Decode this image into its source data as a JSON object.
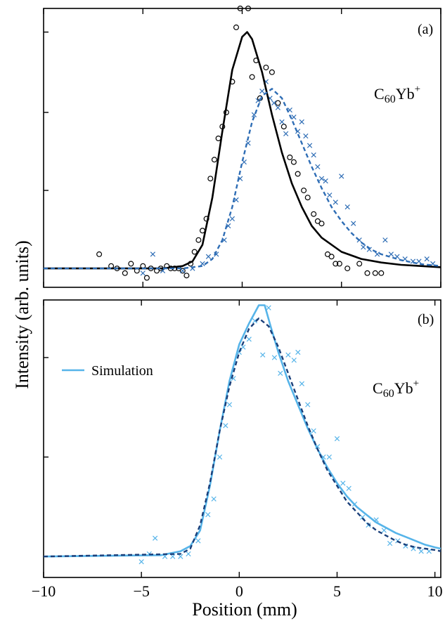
{
  "figure": {
    "xlabel": "Position (mm)",
    "ylabel": "Intensity (arb. units)"
  },
  "colors": {
    "black": "#000000",
    "dark_blue": "#2e6db5",
    "light_blue": "#56b4e9"
  },
  "chart_data": [
    {
      "type": "scatter",
      "panel": "(a)",
      "annotation": {
        "base": "C",
        "sub": "60",
        "mid": "Yb",
        "sup": "+"
      },
      "xlim": [
        -10,
        10
      ],
      "ylim": [
        -0.08,
        1.1
      ],
      "xticks": [
        -10,
        -5,
        0,
        5,
        10
      ],
      "yticks": [
        0,
        0.33,
        0.66,
        1.0
      ],
      "series": [
        {
          "style": "circle-markers",
          "color": "#000000",
          "points": [
            [
              -7.2,
              0.06
            ],
            [
              -6.6,
              0.01
            ],
            [
              -6.3,
              0.0
            ],
            [
              -5.9,
              -0.02
            ],
            [
              -5.6,
              0.02
            ],
            [
              -5.3,
              -0.01
            ],
            [
              -5.0,
              0.01
            ],
            [
              -4.8,
              -0.04
            ],
            [
              -4.6,
              0.0
            ],
            [
              -4.3,
              -0.01
            ],
            [
              -4.1,
              0.0
            ],
            [
              -3.8,
              0.01
            ],
            [
              -3.6,
              0.0
            ],
            [
              -3.4,
              0.0
            ],
            [
              -3.2,
              0.0
            ],
            [
              -3.0,
              -0.01
            ],
            [
              -2.8,
              -0.03
            ],
            [
              -2.6,
              0.02
            ],
            [
              -2.4,
              0.07
            ],
            [
              -2.2,
              0.12
            ],
            [
              -2.0,
              0.16
            ],
            [
              -1.8,
              0.21
            ],
            [
              -1.6,
              0.38
            ],
            [
              -1.4,
              0.46
            ],
            [
              -1.2,
              0.55
            ],
            [
              -1.0,
              0.6
            ],
            [
              -0.8,
              0.66
            ],
            [
              -0.5,
              0.79
            ],
            [
              -0.3,
              1.02
            ],
            [
              -0.1,
              1.1
            ],
            [
              0.3,
              1.1
            ],
            [
              0.5,
              0.81
            ],
            [
              0.7,
              0.88
            ],
            [
              0.9,
              0.72
            ],
            [
              1.2,
              0.85
            ],
            [
              1.5,
              0.83
            ],
            [
              1.8,
              0.7
            ],
            [
              2.1,
              0.6
            ],
            [
              2.4,
              0.47
            ],
            [
              2.6,
              0.45
            ],
            [
              2.8,
              0.4
            ],
            [
              3.1,
              0.33
            ],
            [
              3.3,
              0.3
            ],
            [
              3.6,
              0.23
            ],
            [
              3.8,
              0.2
            ],
            [
              4.0,
              0.19
            ],
            [
              4.3,
              0.06
            ],
            [
              4.5,
              0.05
            ],
            [
              4.7,
              0.02
            ],
            [
              4.9,
              0.02
            ],
            [
              5.3,
              0.0
            ],
            [
              5.9,
              0.02
            ],
            [
              6.3,
              -0.02
            ],
            [
              6.7,
              -0.02
            ],
            [
              7.0,
              -0.02
            ]
          ]
        },
        {
          "style": "x-markers",
          "color": "#2e6db5",
          "points": [
            [
              -4.5,
              0.06
            ],
            [
              -5.0,
              -0.02
            ],
            [
              -4.0,
              -0.01
            ],
            [
              -3.0,
              -0.01
            ],
            [
              -2.5,
              0.0
            ],
            [
              -2.0,
              0.02
            ],
            [
              -1.7,
              0.05
            ],
            [
              -1.3,
              0.06
            ],
            [
              -0.9,
              0.12
            ],
            [
              -0.7,
              0.18
            ],
            [
              -0.5,
              0.21
            ],
            [
              -0.3,
              0.29
            ],
            [
              -0.1,
              0.38
            ],
            [
              0.1,
              0.45
            ],
            [
              0.3,
              0.53
            ],
            [
              0.6,
              0.65
            ],
            [
              0.8,
              0.71
            ],
            [
              1.0,
              0.75
            ],
            [
              1.2,
              0.79
            ],
            [
              1.4,
              0.72
            ],
            [
              1.6,
              0.7
            ],
            [
              1.8,
              0.68
            ],
            [
              2.0,
              0.62
            ],
            [
              2.2,
              0.57
            ],
            [
              2.4,
              0.67
            ],
            [
              2.6,
              0.64
            ],
            [
              2.8,
              0.58
            ],
            [
              3.0,
              0.62
            ],
            [
              3.2,
              0.56
            ],
            [
              3.4,
              0.52
            ],
            [
              3.6,
              0.48
            ],
            [
              3.8,
              0.43
            ],
            [
              4.0,
              0.38
            ],
            [
              4.2,
              0.37
            ],
            [
              4.4,
              0.31
            ],
            [
              4.7,
              0.28
            ],
            [
              5.0,
              0.39
            ],
            [
              5.3,
              0.26
            ],
            [
              5.6,
              0.19
            ],
            [
              5.9,
              0.12
            ],
            [
              6.1,
              0.09
            ],
            [
              6.4,
              0.08
            ],
            [
              6.8,
              0.06
            ],
            [
              7.2,
              0.12
            ],
            [
              7.5,
              0.06
            ],
            [
              7.8,
              0.05
            ],
            [
              8.2,
              0.04
            ],
            [
              8.6,
              0.03
            ],
            [
              8.9,
              0.03
            ],
            [
              9.3,
              0.04
            ],
            [
              9.6,
              0.02
            ]
          ]
        },
        {
          "style": "solid-line",
          "color": "#000000",
          "points": [
            [
              -10,
              0.0
            ],
            [
              -4,
              0.0
            ],
            [
              -3,
              0.01
            ],
            [
              -2.5,
              0.03
            ],
            [
              -2,
              0.1
            ],
            [
              -1.5,
              0.3
            ],
            [
              -1,
              0.58
            ],
            [
              -0.5,
              0.84
            ],
            [
              0,
              0.98
            ],
            [
              0.25,
              1.0
            ],
            [
              0.5,
              0.97
            ],
            [
              1,
              0.83
            ],
            [
              1.5,
              0.65
            ],
            [
              2,
              0.49
            ],
            [
              2.5,
              0.36
            ],
            [
              3,
              0.26
            ],
            [
              3.5,
              0.18
            ],
            [
              4,
              0.13
            ],
            [
              5,
              0.07
            ],
            [
              6,
              0.04
            ],
            [
              7,
              0.025
            ],
            [
              8,
              0.015
            ],
            [
              9,
              0.01
            ],
            [
              10,
              0.005
            ]
          ]
        },
        {
          "style": "dashed-line",
          "color": "#2e6db5",
          "points": [
            [
              -10,
              0.0
            ],
            [
              -3,
              0.0
            ],
            [
              -2,
              0.01
            ],
            [
              -1.5,
              0.04
            ],
            [
              -1,
              0.12
            ],
            [
              -0.5,
              0.26
            ],
            [
              0,
              0.45
            ],
            [
              0.5,
              0.62
            ],
            [
              1,
              0.73
            ],
            [
              1.5,
              0.76
            ],
            [
              2,
              0.72
            ],
            [
              2.5,
              0.63
            ],
            [
              3,
              0.53
            ],
            [
              3.5,
              0.43
            ],
            [
              4,
              0.34
            ],
            [
              4.5,
              0.26
            ],
            [
              5,
              0.2
            ],
            [
              5.5,
              0.15
            ],
            [
              6,
              0.11
            ],
            [
              6.5,
              0.08
            ],
            [
              7,
              0.06
            ],
            [
              8,
              0.035
            ],
            [
              9,
              0.018
            ],
            [
              10,
              0.01
            ]
          ]
        }
      ]
    },
    {
      "type": "scatter",
      "panel": "(b)",
      "annotation": {
        "base": "C",
        "sub": "60",
        "mid": "Yb",
        "sup": "+"
      },
      "legend": [
        {
          "label": "Simulation",
          "color": "#56b4e9",
          "style": "solid-line"
        }
      ],
      "legend_position": "top-left",
      "xlim": [
        -10,
        10.3
      ],
      "ylim": [
        -0.08,
        0.98
      ],
      "xticks": [
        -10,
        -5,
        0,
        5,
        10
      ],
      "yticks": [
        0,
        0.38,
        0.76
      ],
      "series": [
        {
          "style": "x-markers",
          "color": "#56b4e9",
          "points": [
            [
              -5.0,
              -0.02
            ],
            [
              -4.6,
              0.01
            ],
            [
              -4.3,
              0.07
            ],
            [
              -3.8,
              0.0
            ],
            [
              -3.4,
              0.0
            ],
            [
              -3.0,
              0.0
            ],
            [
              -2.6,
              0.01
            ],
            [
              -2.1,
              0.06
            ],
            [
              -1.6,
              0.16
            ],
            [
              -1.3,
              0.22
            ],
            [
              -1.0,
              0.38
            ],
            [
              -0.7,
              0.5
            ],
            [
              -0.5,
              0.58
            ],
            [
              -0.3,
              0.68
            ],
            [
              0.0,
              0.78
            ],
            [
              0.2,
              0.8
            ],
            [
              0.5,
              0.83
            ],
            [
              0.8,
              0.9
            ],
            [
              1.2,
              0.77
            ],
            [
              1.5,
              0.95
            ],
            [
              1.8,
              0.76
            ],
            [
              2.1,
              0.7
            ],
            [
              2.5,
              0.77
            ],
            [
              2.8,
              0.75
            ],
            [
              3.0,
              0.78
            ],
            [
              3.2,
              0.66
            ],
            [
              3.5,
              0.58
            ],
            [
              3.8,
              0.48
            ],
            [
              4.0,
              0.42
            ],
            [
              4.3,
              0.38
            ],
            [
              4.6,
              0.38
            ],
            [
              5.0,
              0.45
            ],
            [
              5.3,
              0.28
            ],
            [
              5.6,
              0.26
            ],
            [
              5.9,
              0.2
            ],
            [
              6.3,
              0.15
            ],
            [
              6.6,
              0.12
            ],
            [
              7.0,
              0.14
            ],
            [
              7.4,
              0.1
            ],
            [
              7.7,
              0.05
            ],
            [
              8.1,
              0.06
            ],
            [
              8.5,
              0.04
            ],
            [
              8.9,
              0.03
            ],
            [
              9.3,
              0.02
            ],
            [
              9.7,
              0.02
            ]
          ]
        },
        {
          "style": "solid-line",
          "color": "#56b4e9",
          "points": [
            [
              -10,
              0.0
            ],
            [
              -4,
              0.005
            ],
            [
              -3,
              0.02
            ],
            [
              -2.5,
              0.04
            ],
            [
              -2,
              0.1
            ],
            [
              -1.5,
              0.27
            ],
            [
              -1,
              0.48
            ],
            [
              -0.5,
              0.67
            ],
            [
              0,
              0.81
            ],
            [
              0.5,
              0.89
            ],
            [
              1,
              0.96
            ],
            [
              1.3,
              0.96
            ],
            [
              1.6,
              0.88
            ],
            [
              2,
              0.78
            ],
            [
              2.5,
              0.67
            ],
            [
              3,
              0.58
            ],
            [
              3.5,
              0.49
            ],
            [
              4,
              0.41
            ],
            [
              4.5,
              0.34
            ],
            [
              5,
              0.28
            ],
            [
              5.5,
              0.23
            ],
            [
              6,
              0.19
            ],
            [
              6.5,
              0.16
            ],
            [
              7,
              0.13
            ],
            [
              7.5,
              0.11
            ],
            [
              8,
              0.09
            ],
            [
              8.5,
              0.075
            ],
            [
              9,
              0.06
            ],
            [
              9.5,
              0.045
            ],
            [
              10,
              0.035
            ],
            [
              10.3,
              0.03
            ]
          ]
        },
        {
          "style": "dashed-line",
          "color": "#1a3f7a",
          "points": [
            [
              -10,
              0.0
            ],
            [
              -3,
              0.01
            ],
            [
              -2.5,
              0.03
            ],
            [
              -2,
              0.12
            ],
            [
              -1.5,
              0.28
            ],
            [
              -1,
              0.48
            ],
            [
              -0.5,
              0.65
            ],
            [
              0,
              0.78
            ],
            [
              0.5,
              0.87
            ],
            [
              1,
              0.91
            ],
            [
              1.5,
              0.88
            ],
            [
              2,
              0.8
            ],
            [
              2.5,
              0.7
            ],
            [
              3,
              0.6
            ],
            [
              3.5,
              0.5
            ],
            [
              4,
              0.41
            ],
            [
              4.5,
              0.33
            ],
            [
              5,
              0.27
            ],
            [
              5.5,
              0.21
            ],
            [
              6,
              0.17
            ],
            [
              6.5,
              0.13
            ],
            [
              7,
              0.1
            ],
            [
              7.5,
              0.08
            ],
            [
              8,
              0.06
            ],
            [
              8.5,
              0.045
            ],
            [
              9,
              0.035
            ],
            [
              9.5,
              0.03
            ],
            [
              10,
              0.025
            ],
            [
              10.3,
              0.02
            ]
          ]
        }
      ]
    }
  ]
}
